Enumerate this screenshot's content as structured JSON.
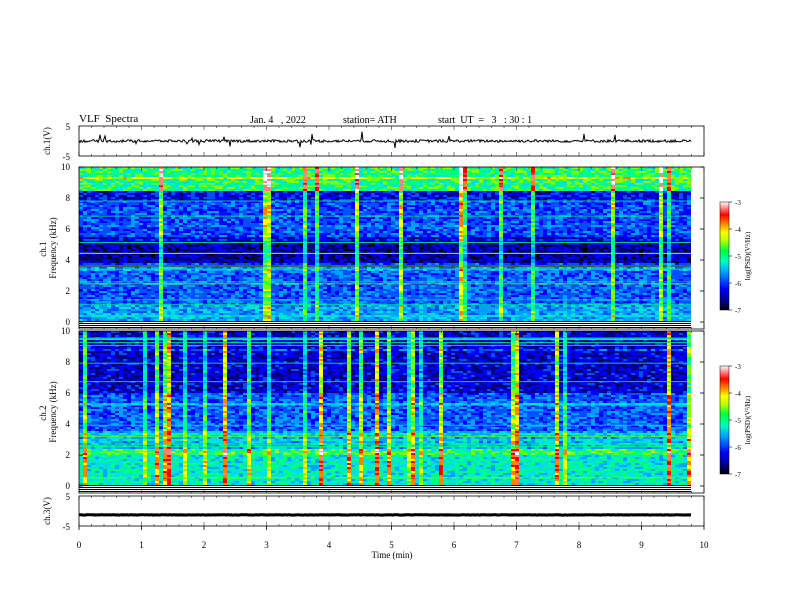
{
  "header": {
    "title": "VLF  Spectra",
    "date": "Jan. 4   , 2022",
    "station": "station= ATH",
    "start": "start  UT  =   3   : 30 : 1"
  },
  "chart_data": [
    {
      "type": "line",
      "panel": "ch1-waveform",
      "ylabel": "ch.1(V)",
      "ylim": [
        -5,
        5
      ],
      "yticks": [
        "5",
        "-5"
      ],
      "xlim": [
        0,
        10
      ],
      "baseline": 0.0,
      "color": "#000000"
    },
    {
      "type": "heatmap",
      "panel": "ch1-spectrogram",
      "ylabel": "ch.1\nFrequency  (kHz)",
      "ylim": [
        0,
        10
      ],
      "yticks": [
        "0",
        "2",
        "4",
        "6",
        "8",
        "10"
      ],
      "xlim": [
        0,
        10
      ],
      "colorbar": {
        "label": "log(PSD)(V²/Hz)",
        "range": [
          -7,
          -3
        ],
        "ticks": [
          "-3",
          "-4",
          "-5",
          "-6",
          "-7"
        ]
      }
    },
    {
      "type": "heatmap",
      "panel": "ch2-spectrogram",
      "ylabel": "ch.2\nFrequency  (kHz)",
      "ylim": [
        0,
        10
      ],
      "yticks": [
        "0",
        "2",
        "4",
        "6",
        "8",
        "10"
      ],
      "xlim": [
        0,
        10
      ],
      "colorbar": {
        "label": "log(PSD)(V²/Hz)",
        "range": [
          -7,
          -3
        ],
        "ticks": [
          "-3",
          "-4",
          "-5",
          "-6",
          "-7"
        ]
      }
    },
    {
      "type": "line",
      "panel": "ch3-waveform",
      "ylabel": "ch.3(V)",
      "ylim": [
        -5,
        5
      ],
      "yticks": [
        "5",
        "-5"
      ],
      "xlim": [
        0,
        10
      ],
      "baseline": -1.3,
      "color": "#000000"
    }
  ],
  "xaxis": {
    "label": "Time  (min)",
    "ticks": [
      "0",
      "1",
      "2",
      "3",
      "4",
      "5",
      "6",
      "7",
      "8",
      "9",
      "10"
    ],
    "range": [
      0,
      10
    ]
  },
  "colormap": [
    "#000000",
    "#000080",
    "#0000ff",
    "#0050ff",
    "#00a0ff",
    "#00e0e0",
    "#00ff80",
    "#80ff00",
    "#ffff00",
    "#ff8000",
    "#ff0000",
    "#ff8080",
    "#ffffff"
  ]
}
